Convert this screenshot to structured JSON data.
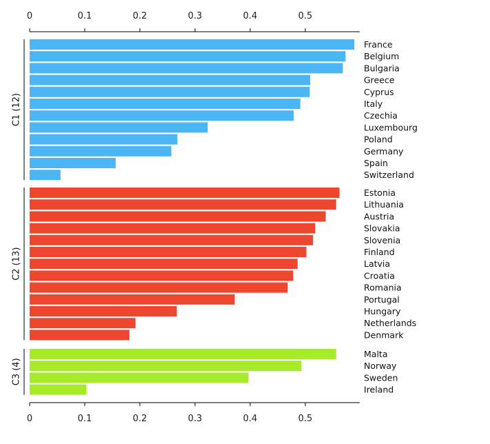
{
  "chart_data": {
    "type": "bar",
    "orientation": "horizontal",
    "xlim": [
      0,
      0.59
    ],
    "xticks": [
      0,
      0.1,
      0.2,
      0.3,
      0.4,
      0.5
    ],
    "xtick_labels": [
      "0",
      "0.1",
      "0.2",
      "0.3",
      "0.4",
      "0.5"
    ],
    "axis_position": "top and bottom",
    "grid": false,
    "groups": [
      {
        "label": "C1 (12)",
        "color": "#4ab6f5",
        "categories": [
          "France",
          "Belgium",
          "Bulgaria",
          "Greece",
          "Cyprus",
          "Italy",
          "Czechia",
          "Luxembourg",
          "Poland",
          "Germany",
          "Spain",
          "Switzerland"
        ],
        "values": [
          0.589,
          0.573,
          0.568,
          0.509,
          0.508,
          0.491,
          0.479,
          0.323,
          0.268,
          0.257,
          0.156,
          0.056
        ]
      },
      {
        "label": "C2 (13)",
        "color": "#ee4730",
        "categories": [
          "Estonia",
          "Lithuania",
          "Austria",
          "Slovakia",
          "Slovenia",
          "Finland",
          "Latvia",
          "Croatia",
          "Romania",
          "Portugal",
          "Hungary",
          "Netherlands",
          "Denmark"
        ],
        "values": [
          0.562,
          0.556,
          0.537,
          0.518,
          0.514,
          0.502,
          0.486,
          0.478,
          0.468,
          0.372,
          0.267,
          0.192,
          0.181
        ]
      },
      {
        "label": "C3 (4)",
        "color": "#a6ea2a",
        "categories": [
          "Malta",
          "Norway",
          "Sweden",
          "Ireland"
        ],
        "values": [
          0.556,
          0.493,
          0.397,
          0.103
        ]
      }
    ]
  }
}
